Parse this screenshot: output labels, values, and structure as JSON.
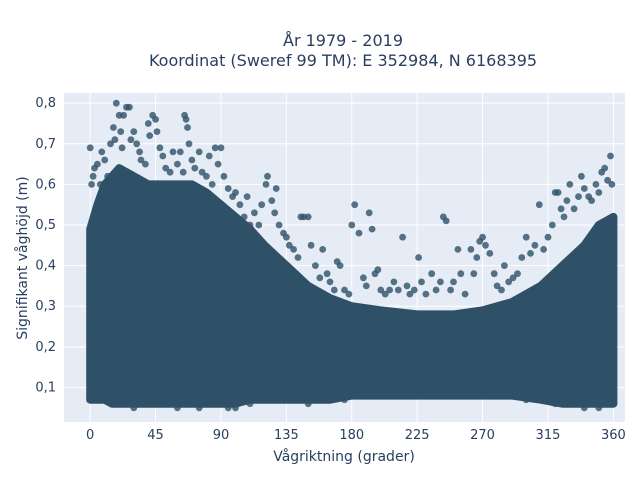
{
  "chart_data": {
    "type": "scatter",
    "title_line1": "År 1979 - 2019",
    "title_line2": "Koordinat (Sweref 99 TM): E 352984, N 6168395",
    "xlabel": "Vågriktning (grader)",
    "ylabel": "Signifikant våghöjd (m)",
    "xlim": [
      -18,
      368
    ],
    "ylim": [
      0.015,
      0.825
    ],
    "xticks": [
      0,
      45,
      90,
      135,
      180,
      225,
      270,
      315,
      360
    ],
    "xtick_labels": [
      "0",
      "45",
      "90",
      "135",
      "180",
      "225",
      "270",
      "315",
      "360"
    ],
    "yticks": [
      0.1,
      0.2,
      0.3,
      0.4,
      0.5,
      0.6,
      0.7,
      0.8
    ],
    "ytick_labels": [
      "0,1",
      "0,2",
      "0,3",
      "0,4",
      "0,5",
      "0,6",
      "0,7",
      "0,8"
    ],
    "grid": true,
    "marker_color": "#2f5168",
    "plot_bg": "#e5ecf6",
    "dense_band": [
      {
        "x": 0,
        "ymin": 0.07,
        "ymax": 0.49
      },
      {
        "x": 5,
        "ymin": 0.07,
        "ymax": 0.55
      },
      {
        "x": 10,
        "ymin": 0.07,
        "ymax": 0.6
      },
      {
        "x": 15,
        "ymin": 0.06,
        "ymax": 0.62
      },
      {
        "x": 20,
        "ymin": 0.06,
        "ymax": 0.64
      },
      {
        "x": 30,
        "ymin": 0.06,
        "ymax": 0.62
      },
      {
        "x": 40,
        "ymin": 0.06,
        "ymax": 0.6
      },
      {
        "x": 50,
        "ymin": 0.06,
        "ymax": 0.6
      },
      {
        "x": 60,
        "ymin": 0.06,
        "ymax": 0.6
      },
      {
        "x": 70,
        "ymin": 0.06,
        "ymax": 0.6
      },
      {
        "x": 80,
        "ymin": 0.06,
        "ymax": 0.58
      },
      {
        "x": 90,
        "ymin": 0.06,
        "ymax": 0.55
      },
      {
        "x": 100,
        "ymin": 0.06,
        "ymax": 0.52
      },
      {
        "x": 110,
        "ymin": 0.07,
        "ymax": 0.49
      },
      {
        "x": 120,
        "ymin": 0.07,
        "ymax": 0.45
      },
      {
        "x": 135,
        "ymin": 0.07,
        "ymax": 0.4
      },
      {
        "x": 150,
        "ymin": 0.07,
        "ymax": 0.35
      },
      {
        "x": 165,
        "ymin": 0.07,
        "ymax": 0.32
      },
      {
        "x": 180,
        "ymin": 0.08,
        "ymax": 0.3
      },
      {
        "x": 200,
        "ymin": 0.08,
        "ymax": 0.29
      },
      {
        "x": 225,
        "ymin": 0.08,
        "ymax": 0.28
      },
      {
        "x": 250,
        "ymin": 0.08,
        "ymax": 0.28
      },
      {
        "x": 270,
        "ymin": 0.08,
        "ymax": 0.29
      },
      {
        "x": 290,
        "ymin": 0.08,
        "ymax": 0.31
      },
      {
        "x": 310,
        "ymin": 0.07,
        "ymax": 0.35
      },
      {
        "x": 325,
        "ymin": 0.06,
        "ymax": 0.4
      },
      {
        "x": 340,
        "ymin": 0.06,
        "ymax": 0.45
      },
      {
        "x": 350,
        "ymin": 0.06,
        "ymax": 0.5
      },
      {
        "x": 360,
        "ymin": 0.06,
        "ymax": 0.52
      }
    ],
    "points": [
      [
        0,
        0.69
      ],
      [
        1,
        0.6
      ],
      [
        2,
        0.62
      ],
      [
        3,
        0.64
      ],
      [
        5,
        0.65
      ],
      [
        7,
        0.6
      ],
      [
        8,
        0.68
      ],
      [
        10,
        0.66
      ],
      [
        12,
        0.62
      ],
      [
        14,
        0.7
      ],
      [
        16,
        0.74
      ],
      [
        17,
        0.71
      ],
      [
        18,
        0.8
      ],
      [
        20,
        0.77
      ],
      [
        21,
        0.73
      ],
      [
        22,
        0.69
      ],
      [
        23,
        0.77
      ],
      [
        25,
        0.79
      ],
      [
        27,
        0.79
      ],
      [
        28,
        0.71
      ],
      [
        30,
        0.73
      ],
      [
        32,
        0.7
      ],
      [
        34,
        0.68
      ],
      [
        35,
        0.66
      ],
      [
        38,
        0.65
      ],
      [
        40,
        0.75
      ],
      [
        41,
        0.72
      ],
      [
        43,
        0.77
      ],
      [
        45,
        0.76
      ],
      [
        46,
        0.73
      ],
      [
        48,
        0.69
      ],
      [
        50,
        0.67
      ],
      [
        52,
        0.64
      ],
      [
        55,
        0.63
      ],
      [
        57,
        0.68
      ],
      [
        60,
        0.65
      ],
      [
        62,
        0.68
      ],
      [
        64,
        0.63
      ],
      [
        65,
        0.77
      ],
      [
        66,
        0.76
      ],
      [
        67,
        0.74
      ],
      [
        68,
        0.7
      ],
      [
        70,
        0.66
      ],
      [
        72,
        0.64
      ],
      [
        75,
        0.68
      ],
      [
        77,
        0.63
      ],
      [
        80,
        0.62
      ],
      [
        82,
        0.67
      ],
      [
        84,
        0.6
      ],
      [
        86,
        0.69
      ],
      [
        88,
        0.65
      ],
      [
        90,
        0.69
      ],
      [
        92,
        0.62
      ],
      [
        95,
        0.59
      ],
      [
        98,
        0.57
      ],
      [
        100,
        0.58
      ],
      [
        103,
        0.55
      ],
      [
        106,
        0.52
      ],
      [
        108,
        0.57
      ],
      [
        110,
        0.5
      ],
      [
        113,
        0.53
      ],
      [
        116,
        0.5
      ],
      [
        118,
        0.55
      ],
      [
        121,
        0.6
      ],
      [
        122,
        0.62
      ],
      [
        125,
        0.56
      ],
      [
        127,
        0.53
      ],
      [
        128,
        0.59
      ],
      [
        130,
        0.5
      ],
      [
        133,
        0.48
      ],
      [
        135,
        0.47
      ],
      [
        137,
        0.45
      ],
      [
        140,
        0.44
      ],
      [
        143,
        0.42
      ],
      [
        145,
        0.52
      ],
      [
        147,
        0.52
      ],
      [
        150,
        0.52
      ],
      [
        152,
        0.45
      ],
      [
        155,
        0.4
      ],
      [
        158,
        0.37
      ],
      [
        160,
        0.44
      ],
      [
        163,
        0.38
      ],
      [
        165,
        0.36
      ],
      [
        168,
        0.34
      ],
      [
        170,
        0.41
      ],
      [
        172,
        0.4
      ],
      [
        175,
        0.34
      ],
      [
        178,
        0.33
      ],
      [
        180,
        0.5
      ],
      [
        182,
        0.55
      ],
      [
        185,
        0.48
      ],
      [
        188,
        0.37
      ],
      [
        190,
        0.35
      ],
      [
        192,
        0.53
      ],
      [
        194,
        0.49
      ],
      [
        196,
        0.38
      ],
      [
        198,
        0.39
      ],
      [
        200,
        0.34
      ],
      [
        203,
        0.33
      ],
      [
        206,
        0.34
      ],
      [
        209,
        0.36
      ],
      [
        212,
        0.34
      ],
      [
        215,
        0.47
      ],
      [
        218,
        0.35
      ],
      [
        220,
        0.33
      ],
      [
        223,
        0.34
      ],
      [
        226,
        0.42
      ],
      [
        228,
        0.36
      ],
      [
        231,
        0.33
      ],
      [
        235,
        0.38
      ],
      [
        238,
        0.34
      ],
      [
        241,
        0.36
      ],
      [
        243,
        0.52
      ],
      [
        245,
        0.51
      ],
      [
        248,
        0.34
      ],
      [
        250,
        0.36
      ],
      [
        253,
        0.44
      ],
      [
        255,
        0.38
      ],
      [
        258,
        0.33
      ],
      [
        262,
        0.44
      ],
      [
        264,
        0.38
      ],
      [
        266,
        0.42
      ],
      [
        268,
        0.46
      ],
      [
        270,
        0.47
      ],
      [
        272,
        0.45
      ],
      [
        275,
        0.43
      ],
      [
        278,
        0.38
      ],
      [
        280,
        0.35
      ],
      [
        283,
        0.34
      ],
      [
        285,
        0.4
      ],
      [
        288,
        0.36
      ],
      [
        291,
        0.37
      ],
      [
        294,
        0.38
      ],
      [
        297,
        0.42
      ],
      [
        300,
        0.47
      ],
      [
        303,
        0.43
      ],
      [
        306,
        0.45
      ],
      [
        309,
        0.55
      ],
      [
        312,
        0.44
      ],
      [
        315,
        0.47
      ],
      [
        318,
        0.5
      ],
      [
        320,
        0.58
      ],
      [
        322,
        0.58
      ],
      [
        324,
        0.54
      ],
      [
        326,
        0.52
      ],
      [
        328,
        0.56
      ],
      [
        330,
        0.6
      ],
      [
        333,
        0.54
      ],
      [
        336,
        0.57
      ],
      [
        338,
        0.62
      ],
      [
        340,
        0.59
      ],
      [
        343,
        0.57
      ],
      [
        345,
        0.56
      ],
      [
        348,
        0.6
      ],
      [
        350,
        0.58
      ],
      [
        352,
        0.63
      ],
      [
        354,
        0.64
      ],
      [
        356,
        0.61
      ],
      [
        358,
        0.67
      ],
      [
        359,
        0.6
      ],
      [
        95,
        0.05
      ],
      [
        100,
        0.05
      ],
      [
        110,
        0.06
      ],
      [
        150,
        0.06
      ],
      [
        160,
        0.07
      ],
      [
        175,
        0.07
      ],
      [
        190,
        0.08
      ],
      [
        210,
        0.08
      ],
      [
        230,
        0.08
      ],
      [
        260,
        0.08
      ],
      [
        280,
        0.08
      ],
      [
        300,
        0.07
      ],
      [
        320,
        0.06
      ],
      [
        340,
        0.05
      ],
      [
        350,
        0.05
      ],
      [
        30,
        0.05
      ],
      [
        60,
        0.05
      ],
      [
        75,
        0.05
      ]
    ]
  }
}
